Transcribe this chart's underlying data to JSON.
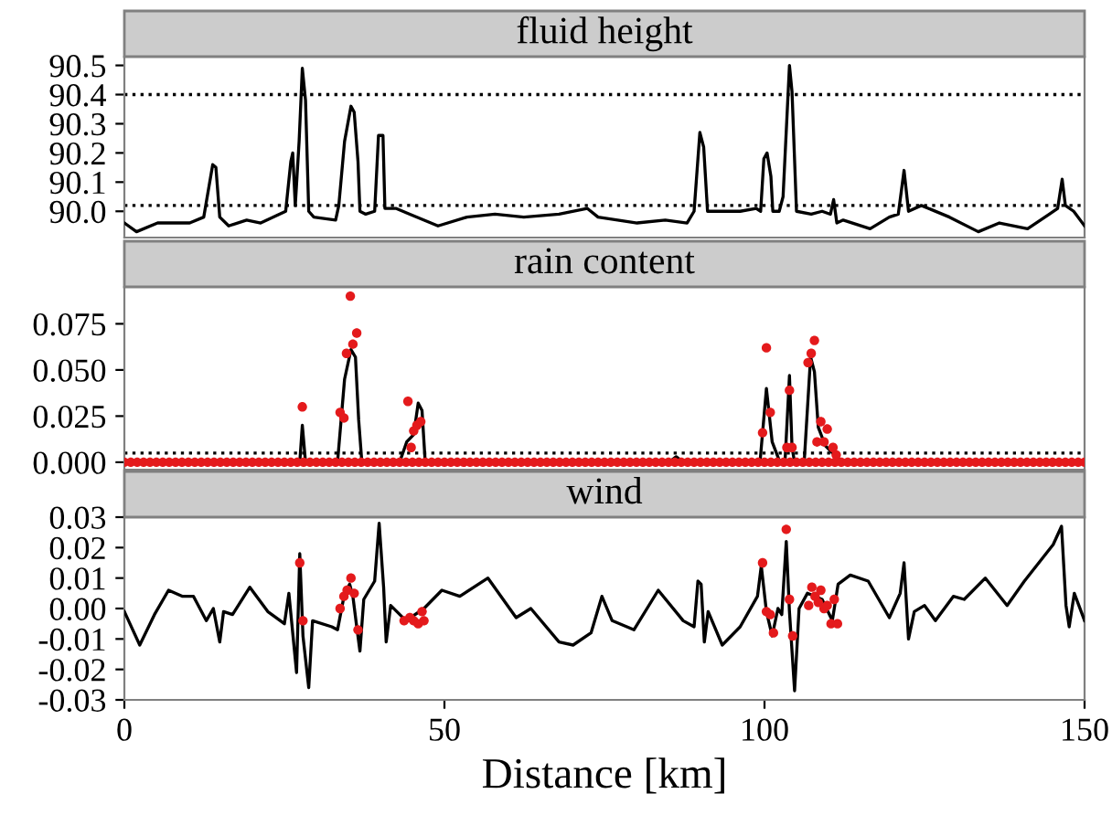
{
  "chart_data": [
    {
      "type": "line",
      "title": "fluid height",
      "xlim": [
        0,
        150
      ],
      "xticks": [
        0,
        50,
        100,
        150
      ],
      "ylim": [
        89.91,
        90.53
      ],
      "yticks": [
        {
          "value": 90.0,
          "label": "90.0"
        },
        {
          "value": 90.1,
          "label": "90.1"
        },
        {
          "value": 90.2,
          "label": "90.2"
        },
        {
          "value": 90.3,
          "label": "90.3"
        },
        {
          "value": 90.4,
          "label": "90.4"
        },
        {
          "value": 90.5,
          "label": "90.5"
        }
      ],
      "tick_labels": "y",
      "grid": false,
      "legend": false,
      "ref_lines": [
        {
          "axis": "y",
          "value": 90.4,
          "color": "#000000",
          "line_style": "dotted"
        },
        {
          "axis": "y",
          "value": 90.02,
          "color": "#000000",
          "line_style": "dotted"
        }
      ],
      "series": [
        {
          "type": "line",
          "color": "#000000",
          "x": [
            0,
            1.9,
            5.2,
            10.2,
            12.4,
            13.8,
            14.3,
            14.9,
            16.3,
            19.1,
            21.3,
            25.2,
            26.0,
            26.3,
            26.7,
            27.3,
            27.8,
            28.3,
            28.8,
            29.6,
            33.0,
            33.5,
            34.4,
            35.4,
            35.9,
            36.5,
            36.8,
            37.7,
            39.1,
            39.7,
            40.4,
            40.7,
            42.4,
            44.6,
            49.0,
            53.5,
            57.9,
            62.4,
            67.9,
            72.3,
            74.0,
            80.1,
            84.5,
            87.9,
            89.0,
            89.9,
            90.5,
            91.1,
            93.4,
            96.2,
            98.7,
            99.4,
            99.9,
            100.4,
            101.0,
            101.3,
            102.3,
            102.9,
            103.9,
            104.3,
            105.0,
            107.3,
            109.0,
            110.3,
            110.8,
            111.3,
            112.3,
            116.5,
            119.5,
            120.9,
            121.8,
            122.5,
            124.5,
            128.9,
            133.4,
            136.7,
            141.1,
            144.5,
            145.8,
            146.5,
            147.0,
            148.3,
            150
          ],
          "values": [
            89.96,
            89.93,
            89.96,
            89.96,
            89.98,
            90.16,
            90.15,
            89.98,
            89.95,
            89.97,
            89.96,
            90.0,
            90.17,
            90.2,
            90.02,
            90.24,
            90.49,
            90.38,
            90.0,
            89.98,
            89.97,
            90.02,
            90.24,
            90.36,
            90.34,
            90.17,
            90.0,
            89.99,
            90.0,
            90.26,
            90.26,
            90.01,
            90.01,
            89.99,
            89.95,
            89.98,
            89.99,
            89.98,
            89.99,
            90.01,
            89.98,
            89.96,
            89.97,
            89.96,
            90.0,
            90.27,
            90.22,
            90.0,
            90.0,
            90.0,
            90.01,
            90.0,
            90.18,
            90.2,
            90.12,
            90.0,
            90.0,
            90.05,
            90.5,
            90.41,
            90.0,
            89.99,
            90.0,
            89.99,
            90.04,
            89.96,
            89.97,
            89.94,
            89.98,
            89.99,
            90.14,
            90.0,
            90.02,
            89.98,
            89.93,
            89.96,
            89.94,
            89.99,
            90.01,
            90.11,
            90.02,
            90.0,
            89.95
          ]
        }
      ]
    },
    {
      "type": "line",
      "title": "rain content",
      "xlim": [
        0,
        150
      ],
      "xticks": [
        0,
        50,
        100,
        150
      ],
      "ylim": [
        -0.004,
        0.095
      ],
      "yticks": [
        {
          "value": 0,
          "label": "0.000"
        },
        {
          "value": 0.025,
          "label": "0.025"
        },
        {
          "value": 0.05,
          "label": "0.050"
        },
        {
          "value": 0.075,
          "label": "0.075"
        }
      ],
      "tick_labels": "y",
      "grid": false,
      "legend": false,
      "ref_lines": [
        {
          "axis": "y",
          "value": 0.005,
          "color": "#000000",
          "line_style": "dotted"
        }
      ],
      "series": [
        {
          "type": "line",
          "color": "#000000",
          "x": [
            0,
            27.4,
            27.8,
            28.3,
            33.3,
            34.4,
            35.4,
            36.1,
            36.6,
            37.1,
            43.0,
            44.1,
            45.2,
            45.9,
            46.5,
            47.0,
            85.1,
            86.2,
            87.3,
            99.3,
            100.3,
            101.2,
            102.3,
            103.2,
            103.9,
            104.3,
            104.7,
            106.2,
            107.2,
            107.8,
            108.4,
            109.5,
            111.2,
            112.3,
            150
          ],
          "values": [
            0,
            0,
            0.02,
            0,
            0,
            0.045,
            0.061,
            0.057,
            0.023,
            0,
            0,
            0.011,
            0.015,
            0.032,
            0.028,
            0,
            0,
            0.003,
            0,
            0,
            0.04,
            0.011,
            0.001,
            0,
            0.047,
            0.008,
            0,
            0,
            0.057,
            0.049,
            0.019,
            0.009,
            0.003,
            0,
            0
          ]
        },
        {
          "type": "scatter",
          "color": "#e41a1c",
          "marker": "circle",
          "x": [
            0,
            1,
            2,
            3,
            4,
            5,
            6,
            7,
            8,
            9,
            10,
            11,
            12,
            13,
            14,
            15,
            16,
            17,
            18,
            19,
            20,
            21,
            22,
            23,
            24,
            25,
            26,
            27,
            28,
            29,
            30,
            31,
            32,
            33,
            34,
            35,
            36,
            37,
            38,
            39,
            40,
            41,
            42,
            43,
            44,
            45,
            46,
            47,
            48,
            49,
            50,
            51,
            52,
            53,
            54,
            55,
            56,
            57,
            58,
            59,
            60,
            61,
            62,
            63,
            64,
            65,
            66,
            67,
            68,
            69,
            70,
            71,
            72,
            73,
            74,
            75,
            76,
            77,
            78,
            79,
            80,
            81,
            82,
            83,
            84,
            85,
            86,
            87,
            88,
            89,
            90,
            91,
            92,
            93,
            94,
            95,
            96,
            97,
            98,
            99,
            100,
            101,
            102,
            103,
            104,
            105,
            106,
            107,
            108,
            109,
            110,
            111,
            112,
            113,
            114,
            115,
            116,
            117,
            118,
            119,
            120,
            121,
            122,
            123,
            124,
            125,
            126,
            127,
            128,
            129,
            130,
            131,
            132,
            133,
            134,
            135,
            136,
            137,
            138,
            139,
            140,
            141,
            142,
            143,
            144,
            145,
            146,
            147,
            148,
            149,
            150,
            27.8,
            33.7,
            34.3,
            34.7,
            35.3,
            35.7,
            36.3,
            44.3,
            44.8,
            45.2,
            45.7,
            46.3,
            99.7,
            100.3,
            100.9,
            103.5,
            103.9,
            104.3,
            106.8,
            107.3,
            107.8,
            108.2,
            108.8,
            109.3,
            109.8,
            110.7,
            111.2
          ],
          "values": [
            0,
            0,
            0,
            0,
            0,
            0,
            0,
            0,
            0,
            0,
            0,
            0,
            0,
            0,
            0,
            0,
            0,
            0,
            0,
            0,
            0,
            0,
            0,
            0,
            0,
            0,
            0,
            0,
            0,
            0,
            0,
            0,
            0,
            0,
            0,
            0,
            0,
            0,
            0,
            0,
            0,
            0,
            0,
            0,
            0,
            0,
            0,
            0,
            0,
            0,
            0,
            0,
            0,
            0,
            0,
            0,
            0,
            0,
            0,
            0,
            0,
            0,
            0,
            0,
            0,
            0,
            0,
            0,
            0,
            0,
            0,
            0,
            0,
            0,
            0,
            0,
            0,
            0,
            0,
            0,
            0,
            0,
            0,
            0,
            0,
            0,
            0,
            0,
            0,
            0,
            0,
            0,
            0,
            0,
            0,
            0,
            0,
            0,
            0,
            0,
            0,
            0,
            0,
            0,
            0,
            0,
            0,
            0,
            0,
            0,
            0,
            0,
            0,
            0,
            0,
            0,
            0,
            0,
            0,
            0,
            0,
            0,
            0,
            0,
            0,
            0,
            0,
            0,
            0,
            0,
            0,
            0,
            0,
            0,
            0,
            0,
            0,
            0,
            0,
            0,
            0,
            0,
            0,
            0,
            0,
            0,
            0,
            0,
            0,
            0,
            0,
            0.03,
            0.027,
            0.024,
            0.059,
            0.09,
            0.064,
            0.07,
            0.033,
            0.008,
            0.017,
            0.02,
            0.022,
            0.016,
            0.062,
            0.027,
            0.008,
            0.039,
            0.008,
            0.054,
            0.059,
            0.066,
            0.011,
            0.022,
            0.011,
            0.018,
            0.008,
            0.004
          ]
        }
      ]
    },
    {
      "type": "line",
      "title": "wind",
      "xlabel": "Distance [km]",
      "xlim": [
        0,
        150
      ],
      "xticks": [
        0,
        50,
        100,
        150
      ],
      "ylim": [
        -0.03,
        0.03
      ],
      "yticks": [
        {
          "value": -0.03,
          "label": "-0.03"
        },
        {
          "value": -0.02,
          "label": "-0.02"
        },
        {
          "value": -0.01,
          "label": "-0.01"
        },
        {
          "value": 0,
          "label": "0.00"
        },
        {
          "value": 0.01,
          "label": "0.01"
        },
        {
          "value": 0.02,
          "label": "0.02"
        },
        {
          "value": 0.03,
          "label": "0.03"
        }
      ],
      "grid": false,
      "legend": false,
      "series": [
        {
          "type": "line",
          "color": "#000000",
          "x": [
            0,
            2.4,
            4.7,
            6.9,
            9.1,
            10.8,
            12.8,
            13.9,
            14.9,
            15.5,
            16.9,
            19.6,
            22.4,
            25.0,
            25.7,
            26.9,
            27.4,
            27.9,
            28.8,
            29.4,
            32.4,
            33.3,
            34.4,
            35.2,
            35.7,
            36.3,
            36.8,
            37.4,
            39.1,
            39.8,
            40.5,
            40.9,
            41.6,
            44.0,
            46.8,
            49.6,
            52.4,
            56.8,
            61.2,
            63.5,
            67.9,
            70.1,
            72.9,
            74.6,
            76.2,
            79.6,
            83.4,
            87.3,
            89.0,
            89.6,
            90.1,
            90.6,
            91.2,
            93.4,
            96.2,
            98.9,
            99.5,
            100.3,
            101.2,
            102.1,
            102.7,
            103.4,
            103.9,
            104.7,
            105.4,
            106.7,
            109.0,
            110.6,
            111.5,
            113.4,
            116.2,
            119.5,
            121.2,
            121.8,
            122.5,
            123.4,
            125.0,
            126.7,
            129.5,
            131.2,
            134.5,
            137.9,
            140.6,
            145.1,
            146.4,
            147.1,
            147.6,
            148.4,
            150
          ],
          "values": [
            -0.001,
            -0.012,
            -0.002,
            0.006,
            0.004,
            0.004,
            -0.004,
            0.0,
            -0.011,
            -0.001,
            -0.002,
            0.007,
            -0.001,
            -0.005,
            0.005,
            -0.021,
            0.018,
            -0.009,
            -0.026,
            -0.004,
            -0.006,
            -0.007,
            0.005,
            0.008,
            0.004,
            -0.006,
            -0.014,
            0.003,
            0.009,
            0.028,
            0.007,
            -0.011,
            0.001,
            -0.004,
            0.0,
            0.006,
            0.004,
            0.01,
            -0.003,
            0.0,
            -0.011,
            -0.012,
            -0.008,
            0.004,
            -0.004,
            -0.007,
            0.006,
            -0.004,
            -0.006,
            0.009,
            0.008,
            -0.011,
            -0.001,
            -0.012,
            -0.006,
            0.004,
            0.014,
            -0.001,
            -0.009,
            0.0,
            -0.002,
            0.022,
            -0.001,
            -0.027,
            0.0,
            0.005,
            0.003,
            -0.004,
            0.008,
            0.011,
            0.009,
            -0.003,
            0.005,
            0.015,
            -0.01,
            -0.001,
            0.001,
            -0.004,
            0.004,
            0.003,
            0.01,
            0.001,
            0.009,
            0.021,
            0.027,
            0.001,
            -0.006,
            0.005,
            -0.004
          ]
        },
        {
          "type": "scatter",
          "color": "#e41a1c",
          "marker": "circle",
          "x": [
            27.4,
            27.9,
            33.7,
            34.3,
            34.8,
            35.4,
            35.9,
            36.5,
            43.7,
            44.6,
            45.2,
            45.9,
            46.5,
            46.8,
            99.7,
            100.3,
            100.9,
            101.4,
            103.4,
            103.9,
            104.4,
            106.9,
            107.4,
            107.9,
            108.4,
            108.8,
            109.3,
            109.8,
            110.4,
            110.9,
            111.4
          ],
          "values": [
            0.015,
            -0.004,
            0.0,
            0.004,
            0.006,
            0.01,
            0.005,
            -0.007,
            -0.004,
            -0.003,
            -0.004,
            -0.005,
            -0.001,
            -0.004,
            0.015,
            -0.001,
            -0.002,
            -0.008,
            0.026,
            0.003,
            -0.009,
            0.001,
            0.007,
            0.004,
            0.002,
            0.006,
            0.0,
            0.001,
            -0.005,
            0.003,
            -0.005
          ]
        }
      ]
    }
  ]
}
